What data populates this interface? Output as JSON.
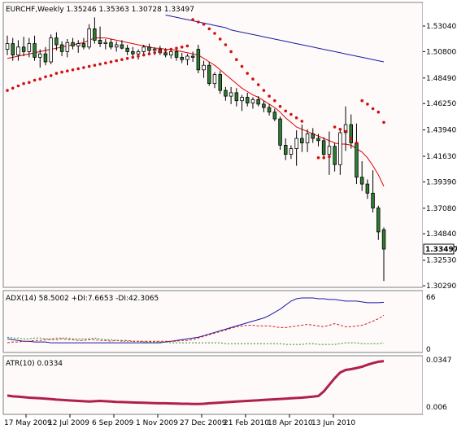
{
  "colors": {
    "background": "#fffafa",
    "frame": "#7f7f7f",
    "bull_candle": "#2e7d32",
    "bear_candle": "#ffffff",
    "wick": "#000000",
    "ma_fast": "#e00000",
    "ma_slow": "#1a1aa0",
    "parabolic_sar": "#d01010",
    "adx_line": "#1a1aa0",
    "plus_di": "#2e8b2e",
    "minus_di": "#d02020",
    "atr_line": "#b0204a",
    "price_tag_bg": "#ffffff"
  },
  "main_panel": {
    "label": "EURCHF,Weekly  1.35246 1.35363 1.30728 1.33497",
    "current_price": "1.33497",
    "y_ticks": [
      "1.53040",
      "1.50800",
      "1.48490",
      "1.46250",
      "1.43940",
      "1.41630",
      "1.39390",
      "1.37080",
      "1.34840",
      "1.32530",
      "1.30290"
    ]
  },
  "adx_panel": {
    "label": "ADX(14) 58.5002 +DI:7.6653 -DI:42.3065",
    "y_ticks": [
      "66",
      "0"
    ]
  },
  "atr_panel": {
    "label": "ATR(10) 0.0334",
    "y_ticks": [
      "0.0347",
      "0.006"
    ]
  },
  "x_axis": {
    "ticks": [
      "17 May 2009",
      "12 Jul 2009",
      "6 Sep 2009",
      "1 Nov 2009",
      "27 Dec 2009",
      "21 Feb 2010",
      "18 Apr 2010",
      "13 Jun 2010"
    ]
  },
  "chart_data": {
    "type": "candlestick",
    "symbol": "EURCHF",
    "timeframe": "Weekly",
    "ylim": [
      1.3029,
      1.5418
    ],
    "candles": [
      {
        "o": 1.51,
        "h": 1.522,
        "l": 1.505,
        "c": 1.515
      },
      {
        "o": 1.515,
        "h": 1.52,
        "l": 1.5,
        "c": 1.505
      },
      {
        "o": 1.505,
        "h": 1.518,
        "l": 1.5,
        "c": 1.512
      },
      {
        "o": 1.512,
        "h": 1.521,
        "l": 1.504,
        "c": 1.508
      },
      {
        "o": 1.508,
        "h": 1.52,
        "l": 1.503,
        "c": 1.515
      },
      {
        "o": 1.515,
        "h": 1.522,
        "l": 1.5,
        "c": 1.503
      },
      {
        "o": 1.503,
        "h": 1.51,
        "l": 1.494,
        "c": 1.506
      },
      {
        "o": 1.506,
        "h": 1.512,
        "l": 1.496,
        "c": 1.499
      },
      {
        "o": 1.499,
        "h": 1.523,
        "l": 1.497,
        "c": 1.52
      },
      {
        "o": 1.52,
        "h": 1.525,
        "l": 1.509,
        "c": 1.514
      },
      {
        "o": 1.514,
        "h": 1.517,
        "l": 1.504,
        "c": 1.508
      },
      {
        "o": 1.508,
        "h": 1.519,
        "l": 1.503,
        "c": 1.516
      },
      {
        "o": 1.516,
        "h": 1.52,
        "l": 1.51,
        "c": 1.513
      },
      {
        "o": 1.513,
        "h": 1.518,
        "l": 1.507,
        "c": 1.515
      },
      {
        "o": 1.515,
        "h": 1.52,
        "l": 1.51,
        "c": 1.512
      },
      {
        "o": 1.512,
        "h": 1.532,
        "l": 1.51,
        "c": 1.528
      },
      {
        "o": 1.528,
        "h": 1.538,
        "l": 1.515,
        "c": 1.518
      },
      {
        "o": 1.518,
        "h": 1.53,
        "l": 1.512,
        "c": 1.515
      },
      {
        "o": 1.515,
        "h": 1.519,
        "l": 1.51,
        "c": 1.516
      },
      {
        "o": 1.516,
        "h": 1.519,
        "l": 1.51,
        "c": 1.512
      },
      {
        "o": 1.512,
        "h": 1.517,
        "l": 1.508,
        "c": 1.514
      },
      {
        "o": 1.514,
        "h": 1.518,
        "l": 1.51,
        "c": 1.511
      },
      {
        "o": 1.511,
        "h": 1.514,
        "l": 1.505,
        "c": 1.508
      },
      {
        "o": 1.508,
        "h": 1.512,
        "l": 1.503,
        "c": 1.506
      },
      {
        "o": 1.506,
        "h": 1.51,
        "l": 1.501,
        "c": 1.508
      },
      {
        "o": 1.508,
        "h": 1.514,
        "l": 1.505,
        "c": 1.512
      },
      {
        "o": 1.512,
        "h": 1.515,
        "l": 1.506,
        "c": 1.509
      },
      {
        "o": 1.509,
        "h": 1.512,
        "l": 1.505,
        "c": 1.51
      },
      {
        "o": 1.51,
        "h": 1.513,
        "l": 1.505,
        "c": 1.507
      },
      {
        "o": 1.507,
        "h": 1.511,
        "l": 1.503,
        "c": 1.505
      },
      {
        "o": 1.505,
        "h": 1.51,
        "l": 1.502,
        "c": 1.508
      },
      {
        "o": 1.508,
        "h": 1.512,
        "l": 1.5,
        "c": 1.503
      },
      {
        "o": 1.503,
        "h": 1.507,
        "l": 1.498,
        "c": 1.501
      },
      {
        "o": 1.501,
        "h": 1.506,
        "l": 1.496,
        "c": 1.504
      },
      {
        "o": 1.504,
        "h": 1.508,
        "l": 1.499,
        "c": 1.503
      },
      {
        "o": 1.51,
        "h": 1.514,
        "l": 1.489,
        "c": 1.492
      },
      {
        "o": 1.492,
        "h": 1.5,
        "l": 1.485,
        "c": 1.496
      },
      {
        "o": 1.496,
        "h": 1.499,
        "l": 1.478,
        "c": 1.48
      },
      {
        "o": 1.48,
        "h": 1.49,
        "l": 1.476,
        "c": 1.488
      },
      {
        "o": 1.488,
        "h": 1.491,
        "l": 1.471,
        "c": 1.474
      },
      {
        "o": 1.474,
        "h": 1.477,
        "l": 1.465,
        "c": 1.469
      },
      {
        "o": 1.469,
        "h": 1.477,
        "l": 1.462,
        "c": 1.472
      },
      {
        "o": 1.472,
        "h": 1.476,
        "l": 1.46,
        "c": 1.465
      },
      {
        "o": 1.465,
        "h": 1.47,
        "l": 1.456,
        "c": 1.468
      },
      {
        "o": 1.468,
        "h": 1.472,
        "l": 1.46,
        "c": 1.463
      },
      {
        "o": 1.463,
        "h": 1.468,
        "l": 1.458,
        "c": 1.466
      },
      {
        "o": 1.466,
        "h": 1.469,
        "l": 1.46,
        "c": 1.462
      },
      {
        "o": 1.462,
        "h": 1.465,
        "l": 1.455,
        "c": 1.459
      },
      {
        "o": 1.459,
        "h": 1.462,
        "l": 1.452,
        "c": 1.455
      },
      {
        "o": 1.455,
        "h": 1.458,
        "l": 1.447,
        "c": 1.449
      },
      {
        "o": 1.449,
        "h": 1.451,
        "l": 1.422,
        "c": 1.426
      },
      {
        "o": 1.426,
        "h": 1.432,
        "l": 1.413,
        "c": 1.418
      },
      {
        "o": 1.418,
        "h": 1.426,
        "l": 1.414,
        "c": 1.423
      },
      {
        "o": 1.423,
        "h": 1.439,
        "l": 1.408,
        "c": 1.432
      },
      {
        "o": 1.432,
        "h": 1.444,
        "l": 1.42,
        "c": 1.428
      },
      {
        "o": 1.428,
        "h": 1.44,
        "l": 1.42,
        "c": 1.436
      },
      {
        "o": 1.436,
        "h": 1.441,
        "l": 1.428,
        "c": 1.432
      },
      {
        "o": 1.432,
        "h": 1.436,
        "l": 1.425,
        "c": 1.43
      },
      {
        "o": 1.43,
        "h": 1.433,
        "l": 1.416,
        "c": 1.418
      },
      {
        "o": 1.418,
        "h": 1.438,
        "l": 1.4,
        "c": 1.425
      },
      {
        "o": 1.425,
        "h": 1.428,
        "l": 1.403,
        "c": 1.409
      },
      {
        "o": 1.409,
        "h": 1.44,
        "l": 1.4,
        "c": 1.437
      },
      {
        "o": 1.437,
        "h": 1.46,
        "l": 1.421,
        "c": 1.444
      },
      {
        "o": 1.444,
        "h": 1.453,
        "l": 1.423,
        "c": 1.428
      },
      {
        "o": 1.428,
        "h": 1.445,
        "l": 1.392,
        "c": 1.398
      },
      {
        "o": 1.398,
        "h": 1.412,
        "l": 1.386,
        "c": 1.392
      },
      {
        "o": 1.392,
        "h": 1.396,
        "l": 1.379,
        "c": 1.384
      },
      {
        "o": 1.384,
        "h": 1.404,
        "l": 1.367,
        "c": 1.371
      },
      {
        "o": 1.371,
        "h": 1.373,
        "l": 1.343,
        "c": 1.35
      },
      {
        "o": 1.352,
        "h": 1.354,
        "l": 1.307,
        "c": 1.335
      }
    ],
    "ma_fast": [
      1.502,
      1.503,
      1.504,
      1.505,
      1.506,
      1.507,
      1.508,
      1.509,
      1.51,
      1.511,
      1.512,
      1.513,
      1.514,
      1.515,
      1.516,
      1.518,
      1.52,
      1.52,
      1.52,
      1.519,
      1.518,
      1.517,
      1.516,
      1.515,
      1.514,
      1.513,
      1.512,
      1.511,
      1.511,
      1.51,
      1.51,
      1.509,
      1.508,
      1.507,
      1.506,
      1.505,
      1.502,
      1.499,
      1.496,
      1.492,
      1.488,
      1.484,
      1.48,
      1.476,
      1.473,
      1.47,
      1.468,
      1.465,
      1.462,
      1.459,
      1.455,
      1.45,
      1.446,
      1.442,
      1.44,
      1.438,
      1.436,
      1.434,
      1.432,
      1.43,
      1.428,
      1.427,
      1.427,
      1.426,
      1.423,
      1.42,
      1.415,
      1.408,
      1.4,
      1.39
    ],
    "ma_slow": [
      null,
      null,
      null,
      null,
      null,
      null,
      null,
      null,
      null,
      null,
      null,
      null,
      null,
      null,
      null,
      null,
      null,
      null,
      null,
      null,
      null,
      null,
      null,
      null,
      null,
      null,
      null,
      null,
      null,
      1.54,
      1.539,
      1.538,
      1.537,
      1.536,
      1.535,
      1.534,
      1.533,
      1.532,
      1.531,
      1.53,
      1.529,
      1.527,
      1.526,
      1.525,
      1.524,
      1.523,
      1.522,
      1.521,
      1.52,
      1.519,
      1.518,
      1.517,
      1.516,
      1.515,
      1.514,
      1.513,
      1.512,
      1.511,
      1.51,
      1.509,
      1.508,
      1.507,
      1.506,
      1.505,
      1.504,
      1.503,
      1.502,
      1.501,
      1.5,
      1.499
    ],
    "sar": [
      1.474,
      1.476,
      1.478,
      1.48,
      1.481,
      1.483,
      1.484,
      1.486,
      1.487,
      1.489,
      1.49,
      1.491,
      1.492,
      1.493,
      1.494,
      1.495,
      1.496,
      1.497,
      1.498,
      1.499,
      1.5,
      1.501,
      1.502,
      1.503,
      1.504,
      1.505,
      1.506,
      1.507,
      1.508,
      1.509,
      1.51,
      1.511,
      1.512,
      1.513,
      1.536,
      1.534,
      1.532,
      1.528,
      1.524,
      1.519,
      1.514,
      1.508,
      1.501,
      1.495,
      1.489,
      1.484,
      1.479,
      1.474,
      1.469,
      1.465,
      1.46,
      1.456,
      1.453,
      1.45,
      1.447,
      null,
      null,
      1.415,
      1.415,
      1.416,
      1.442,
      1.44,
      1.438,
      1.432,
      1.428,
      1.465,
      1.462,
      1.458,
      1.455,
      1.446
    ],
    "adx": [
      13,
      12,
      11,
      10,
      10,
      9,
      9,
      9,
      8,
      8,
      8,
      8,
      8,
      8,
      8,
      8,
      8,
      8,
      8,
      8,
      8,
      8,
      8,
      8,
      8,
      8,
      8,
      8,
      8,
      9,
      10,
      11,
      12,
      13,
      14,
      15,
      17,
      19,
      21,
      23,
      25,
      27,
      29,
      31,
      33,
      35,
      37,
      39,
      42,
      46,
      50,
      55,
      60,
      63,
      64,
      64,
      64,
      63,
      63,
      62,
      62,
      61,
      60,
      60,
      60,
      59,
      58,
      58,
      58,
      58.5
    ],
    "plus_di": [
      15,
      14,
      14,
      13,
      13,
      14,
      14,
      13,
      13,
      14,
      14,
      14,
      13,
      13,
      13,
      13,
      14,
      13,
      12,
      12,
      11,
      10,
      10,
      10,
      10,
      9,
      9,
      9,
      9,
      9,
      8,
      8,
      8,
      8,
      8,
      8,
      8,
      8,
      8,
      8,
      7,
      7,
      7,
      7,
      7,
      7,
      7,
      7,
      7,
      7,
      7,
      6,
      6,
      6,
      6,
      7,
      7,
      6,
      6,
      6,
      6,
      7,
      8,
      8,
      8,
      7,
      7,
      7,
      7,
      7.67
    ],
    "minus_di": [
      8,
      9,
      9,
      10,
      10,
      11,
      11,
      12,
      12,
      12,
      13,
      12,
      12,
      11,
      11,
      12,
      12,
      11,
      11,
      10,
      11,
      11,
      11,
      10,
      10,
      10,
      10,
      10,
      10,
      10,
      10,
      10,
      11,
      11,
      12,
      14,
      16,
      18,
      20,
      22,
      24,
      26,
      28,
      29,
      30,
      30,
      29,
      29,
      29,
      28,
      27,
      27,
      28,
      29,
      30,
      31,
      30,
      29,
      28,
      30,
      32,
      30,
      28,
      28,
      29,
      30,
      32,
      35,
      38,
      42.3
    ],
    "atr": [
      0.0125,
      0.012,
      0.0118,
      0.0115,
      0.0112,
      0.011,
      0.0108,
      0.0106,
      0.0103,
      0.01,
      0.0098,
      0.0096,
      0.0094,
      0.0092,
      0.009,
      0.0088,
      0.009,
      0.0092,
      0.009,
      0.0088,
      0.0086,
      0.0085,
      0.0084,
      0.0083,
      0.0082,
      0.0081,
      0.008,
      0.0079,
      0.0078,
      0.0078,
      0.0077,
      0.0076,
      0.0075,
      0.0075,
      0.0074,
      0.0074,
      0.0075,
      0.0078,
      0.008,
      0.0082,
      0.0084,
      0.0086,
      0.0088,
      0.009,
      0.0092,
      0.0094,
      0.0096,
      0.0098,
      0.01,
      0.0102,
      0.0104,
      0.0106,
      0.0108,
      0.011,
      0.0112,
      0.0115,
      0.0118,
      0.0122,
      0.015,
      0.019,
      0.023,
      0.0265,
      0.028,
      0.0285,
      0.0292,
      0.03,
      0.0312,
      0.0322,
      0.033,
      0.0334
    ]
  }
}
